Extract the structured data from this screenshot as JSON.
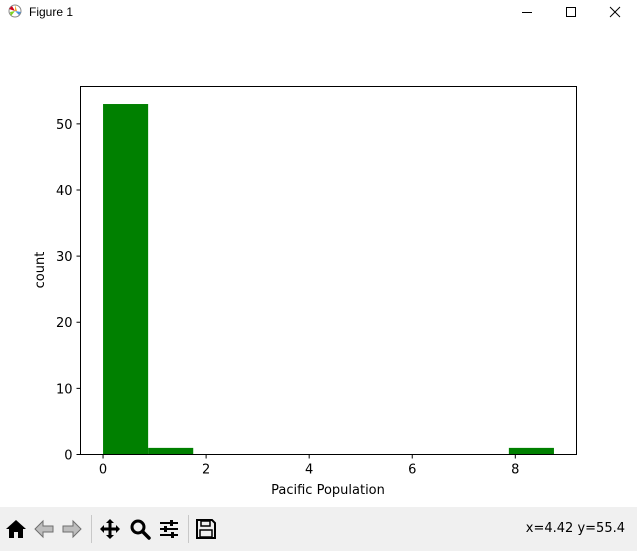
{
  "window": {
    "title": "Figure 1",
    "controls": [
      "minimize-icon",
      "maximize-icon",
      "close-icon"
    ]
  },
  "toolbar": {
    "buttons": [
      "home-icon",
      "back-icon",
      "forward-icon",
      "pan-icon",
      "zoom-icon",
      "configure-subplots-icon",
      "save-icon"
    ],
    "coords": "x=4.42 y=55.4"
  },
  "chart_data": {
    "type": "bar",
    "subtype": "histogram",
    "bins": [
      {
        "x0": 0.0,
        "x1": 0.875,
        "count": 53
      },
      {
        "x0": 0.875,
        "x1": 1.75,
        "count": 1
      },
      {
        "x0": 1.75,
        "x1": 2.625,
        "count": 0
      },
      {
        "x0": 2.625,
        "x1": 3.5,
        "count": 0
      },
      {
        "x0": 3.5,
        "x1": 4.375,
        "count": 0
      },
      {
        "x0": 4.375,
        "x1": 5.25,
        "count": 0
      },
      {
        "x0": 5.25,
        "x1": 6.125,
        "count": 0
      },
      {
        "x0": 6.125,
        "x1": 7.0,
        "count": 0
      },
      {
        "x0": 7.0,
        "x1": 7.875,
        "count": 0
      },
      {
        "x0": 7.875,
        "x1": 8.75,
        "count": 1
      }
    ],
    "xlabel": "Pacific Population",
    "ylabel": "count",
    "xlim": [
      -0.4375,
      9.1875
    ],
    "ylim": [
      0,
      55.65
    ],
    "xticks": [
      0,
      2,
      4,
      6,
      8
    ],
    "yticks": [
      0,
      10,
      20,
      30,
      40,
      50
    ],
    "bar_color": "#008000",
    "grid": false
  }
}
